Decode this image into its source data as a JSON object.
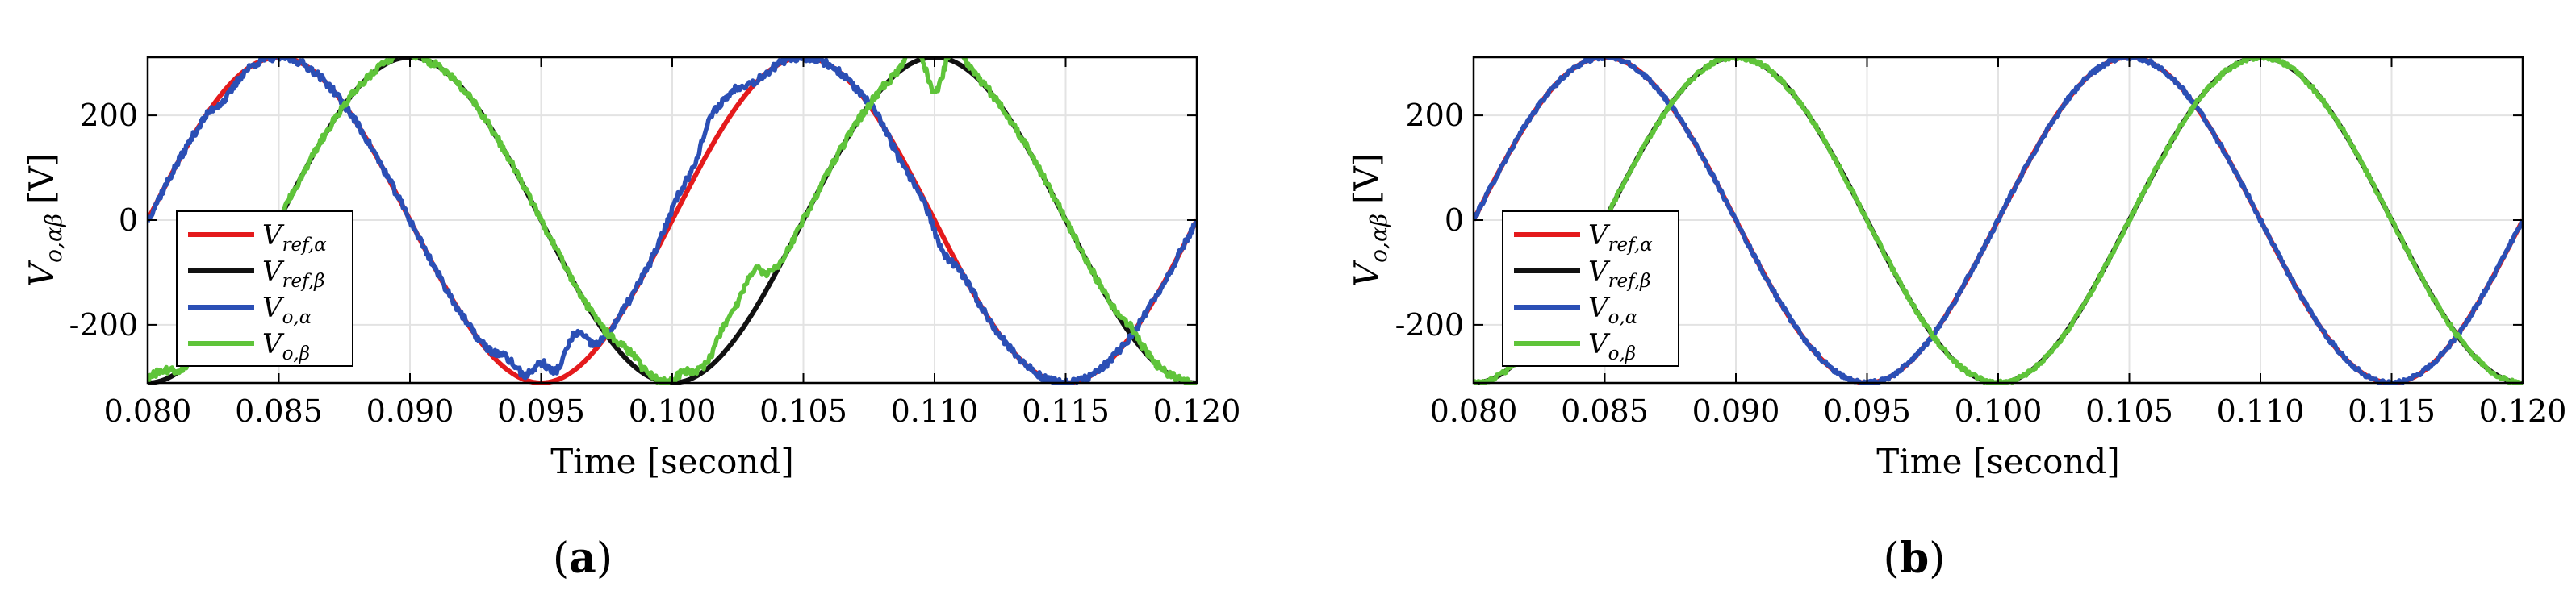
{
  "chart_data": [
    {
      "type": "line",
      "panel_label": "(a)",
      "xlabel": "Time [second]",
      "ylabel": "V_{o,αβ} [V]",
      "ylabel_main": "V",
      "ylabel_sub": "o,αβ",
      "ylabel_unit": "[V]",
      "xlim": [
        0.08,
        0.12
      ],
      "ylim": [
        -311,
        311
      ],
      "xticks": [
        "0.080",
        "0.085",
        "0.090",
        "0.095",
        "0.100",
        "0.105",
        "0.110",
        "0.115",
        "0.120"
      ],
      "xtick_values": [
        0.08,
        0.085,
        0.09,
        0.095,
        0.1,
        0.105,
        0.11,
        0.115,
        0.12
      ],
      "yticks": [
        "-200",
        "0",
        "200"
      ],
      "ytick_values": [
        -200,
        0,
        200
      ],
      "grid": true,
      "legend_position": "lower-left",
      "amplitude": 311,
      "frequency_hz": 50,
      "series": [
        {
          "name": "V_{ref,α}",
          "main": "V",
          "sub": "ref,α",
          "color": "#e41a1c",
          "function": "311*sin(2*pi*50*t)",
          "noise": "none"
        },
        {
          "name": "V_{ref,β}",
          "main": "V",
          "sub": "ref,β",
          "color": "#111111",
          "function": "-311*cos(2*pi*50*t)",
          "noise": "none"
        },
        {
          "name": "V_{o,α}",
          "main": "V",
          "sub": "o,α",
          "color": "#2b4fb5",
          "function": "tracks V_{ref,α} with distortion",
          "noise": "high"
        },
        {
          "name": "V_{o,β}",
          "main": "V",
          "sub": "o,β",
          "color": "#5fc43a",
          "function": "tracks V_{ref,β} with distortion",
          "noise": "high"
        }
      ]
    },
    {
      "type": "line",
      "panel_label": "(b)",
      "xlabel": "Time [second]",
      "ylabel": "V_{o,αβ} [V]",
      "ylabel_main": "V",
      "ylabel_sub": "o,αβ",
      "ylabel_unit": "[V]",
      "xlim": [
        0.08,
        0.12
      ],
      "ylim": [
        -311,
        311
      ],
      "xticks": [
        "0.080",
        "0.085",
        "0.090",
        "0.095",
        "0.100",
        "0.105",
        "0.110",
        "0.115",
        "0.120"
      ],
      "xtick_values": [
        0.08,
        0.085,
        0.09,
        0.095,
        0.1,
        0.105,
        0.11,
        0.115,
        0.12
      ],
      "yticks": [
        "-200",
        "0",
        "200"
      ],
      "ytick_values": [
        -200,
        0,
        200
      ],
      "grid": true,
      "legend_position": "lower-left",
      "amplitude": 311,
      "frequency_hz": 50,
      "series": [
        {
          "name": "V_{ref,α}",
          "main": "V",
          "sub": "ref,α",
          "color": "#e41a1c",
          "function": "311*sin(2*pi*50*t)",
          "noise": "none"
        },
        {
          "name": "V_{ref,β}",
          "main": "V",
          "sub": "ref,β",
          "color": "#111111",
          "function": "-311*cos(2*pi*50*t)",
          "noise": "none"
        },
        {
          "name": "V_{o,α}",
          "main": "V",
          "sub": "o,α",
          "color": "#2b4fb5",
          "function": "tracks V_{ref,α} closely",
          "noise": "low"
        },
        {
          "name": "V_{o,β}",
          "main": "V",
          "sub": "o,β",
          "color": "#5fc43a",
          "function": "tracks V_{ref,β} closely",
          "noise": "low"
        }
      ]
    }
  ]
}
